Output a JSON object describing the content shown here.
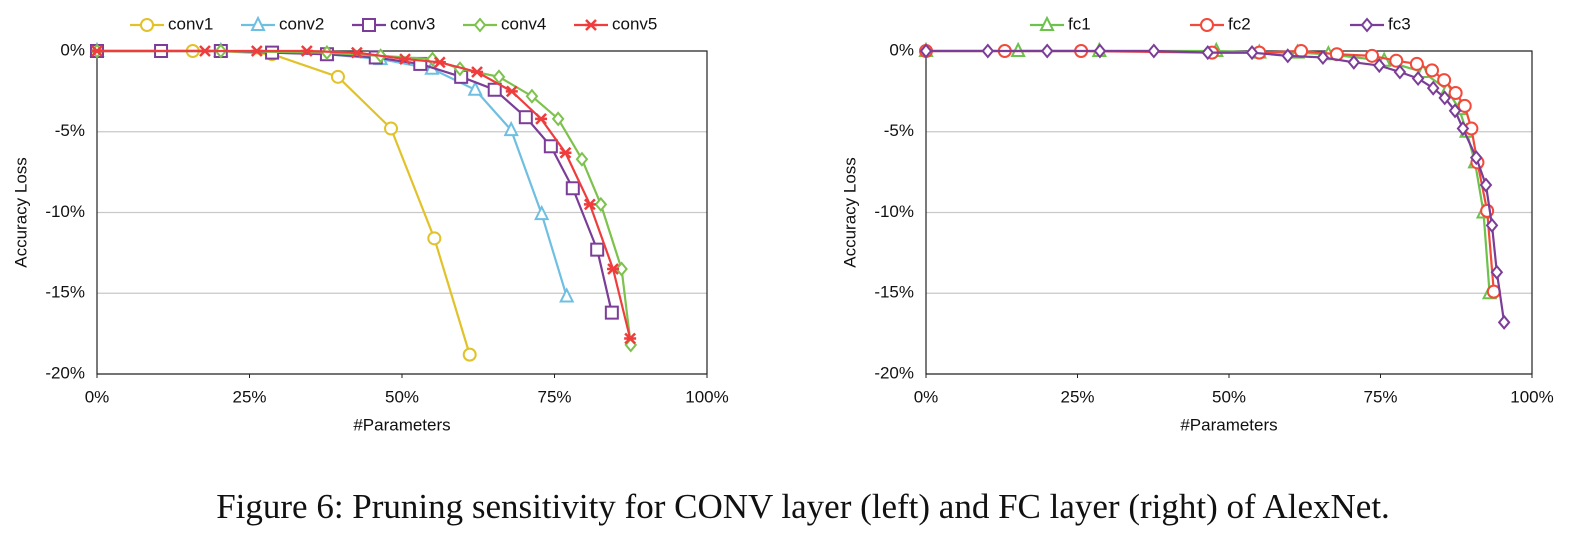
{
  "chart_data": [
    {
      "type": "line",
      "xlabel": "#Parameters",
      "ylabel": "Accuracy Loss",
      "xlim": [
        0,
        100
      ],
      "ylim": [
        -20,
        0
      ],
      "grid": true,
      "legend": "top",
      "xticks": [
        {
          "value": 0,
          "label": "0%"
        },
        {
          "value": 25,
          "label": "25%"
        },
        {
          "value": 50,
          "label": "50%"
        },
        {
          "value": 75,
          "label": "75%"
        },
        {
          "value": 100,
          "label": "100%"
        }
      ],
      "yticks": [
        {
          "value": 0,
          "label": "0%"
        },
        {
          "value": -5,
          "label": "-5%"
        },
        {
          "value": -10,
          "label": "-10%"
        },
        {
          "value": -15,
          "label": "-15%"
        },
        {
          "value": -20,
          "label": "-20%"
        }
      ],
      "series": [
        {
          "name": "conv1",
          "color": "#e2c229",
          "marker": "circle",
          "x": [
            0,
            15.7,
            20.3,
            28.7,
            39.5,
            48.2,
            55.3,
            61.1
          ],
          "values": [
            0,
            0,
            0,
            -0.2,
            -1.6,
            -4.8,
            -11.6,
            -18.8
          ]
        },
        {
          "name": "conv2",
          "color": "#6fbfe2",
          "marker": "triangle",
          "x": [
            0,
            20.3,
            37.7,
            46.5,
            54.9,
            62,
            67.9,
            72.9,
            77
          ],
          "values": [
            0,
            0,
            -0.2,
            -0.5,
            -1.1,
            -2.4,
            -4.9,
            -10.1,
            -15.2
          ]
        },
        {
          "name": "conv3",
          "color": "#7b3d98",
          "marker": "square",
          "x": [
            0,
            10.5,
            20.3,
            28.7,
            37.7,
            45.7,
            53,
            59.7,
            65.2,
            70.3,
            74.4,
            78,
            82,
            84.4
          ],
          "values": [
            0,
            0,
            0,
            -0.1,
            -0.2,
            -0.4,
            -0.8,
            -1.6,
            -2.4,
            -4.1,
            -5.9,
            -8.5,
            -12.3,
            -16.2
          ]
        },
        {
          "name": "conv4",
          "color": "#7cc24c",
          "marker": "diamond",
          "x": [
            0,
            20.3,
            37.7,
            46.5,
            55,
            59.5,
            65.9,
            71.3,
            75.6,
            79.5,
            82.6,
            86,
            87.5
          ],
          "values": [
            0,
            0,
            -0.1,
            -0.3,
            -0.5,
            -1.1,
            -1.6,
            -2.8,
            -4.2,
            -6.7,
            -9.5,
            -13.5,
            -18.2
          ]
        },
        {
          "name": "conv5",
          "color": "#ef3d3d",
          "marker": "x",
          "x": [
            0,
            17.7,
            26.2,
            34.4,
            42.6,
            50.5,
            56.2,
            62.3,
            68,
            72.8,
            76.8,
            80.8,
            84.6,
            87.4
          ],
          "values": [
            0,
            0,
            0,
            0,
            -0.1,
            -0.5,
            -0.7,
            -1.3,
            -2.5,
            -4.2,
            -6.3,
            -9.5,
            -13.5,
            -17.8
          ]
        }
      ]
    },
    {
      "type": "line",
      "xlabel": "#Parameters",
      "ylabel": "Accuracy Loss",
      "xlim": [
        0,
        100
      ],
      "ylim": [
        -20,
        0
      ],
      "grid": true,
      "legend": "top",
      "xticks": [
        {
          "value": 0,
          "label": "0%"
        },
        {
          "value": 25,
          "label": "25%"
        },
        {
          "value": 50,
          "label": "50%"
        },
        {
          "value": 75,
          "label": "75%"
        },
        {
          "value": 100,
          "label": "100%"
        }
      ],
      "yticks": [
        {
          "value": 0,
          "label": "0%"
        },
        {
          "value": -5,
          "label": "-5%"
        },
        {
          "value": -10,
          "label": "-10%"
        },
        {
          "value": -15,
          "label": "-15%"
        },
        {
          "value": -20,
          "label": "-20%"
        }
      ],
      "series": [
        {
          "name": "fc1",
          "color": "#6cc24c",
          "marker": "triangle",
          "x": [
            0,
            15.2,
            28.6,
            47.9,
            55,
            61.3,
            66.4,
            75.6,
            82,
            86,
            88,
            89.2,
            90.6,
            92,
            93
          ],
          "values": [
            0,
            0,
            0,
            0,
            -0.1,
            -0.1,
            -0.2,
            -0.6,
            -1.3,
            -2.4,
            -3.6,
            -5,
            -6.9,
            -10,
            -15
          ]
        },
        {
          "name": "fc2",
          "color": "#f24a3a",
          "marker": "circle",
          "x": [
            0,
            13,
            25.6,
            47.2,
            55,
            61.9,
            67.8,
            73.6,
            77.6,
            81,
            83.5,
            85.5,
            87.4,
            88.9,
            90,
            91,
            92.6,
            93.7
          ],
          "values": [
            0,
            0,
            0,
            -0.1,
            -0.1,
            0,
            -0.2,
            -0.3,
            -0.6,
            -0.8,
            -1.2,
            -1.8,
            -2.6,
            -3.4,
            -4.8,
            -6.9,
            -9.9,
            -14.9
          ]
        },
        {
          "name": "fc3",
          "color": "#7b3d98",
          "marker": "diamond",
          "x": [
            0,
            10.2,
            20,
            28.7,
            37.6,
            46.5,
            53.8,
            59.7,
            65.5,
            70.6,
            74.8,
            78.2,
            81.2,
            83.7,
            85.6,
            87.3,
            88.6,
            90.8,
            92.4,
            93.4,
            94.2,
            95.4
          ],
          "values": [
            0,
            0,
            0,
            0,
            0,
            -0.1,
            -0.1,
            -0.3,
            -0.4,
            -0.7,
            -0.9,
            -1.3,
            -1.7,
            -2.3,
            -2.9,
            -3.7,
            -4.8,
            -6.6,
            -8.3,
            -10.8,
            -13.7,
            -16.8
          ]
        }
      ]
    }
  ],
  "caption": "Figure 6: Pruning sensitivity for CONV layer (left) and FC layer (right) of AlexNet."
}
